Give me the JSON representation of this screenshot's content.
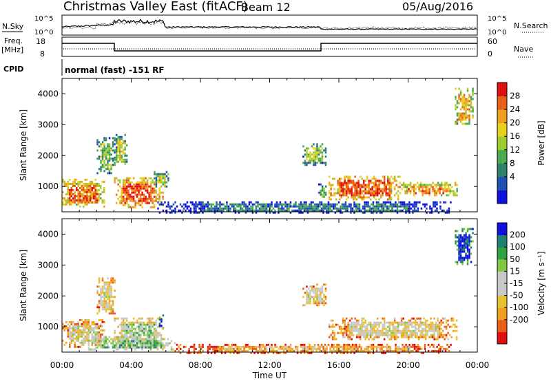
{
  "header": {
    "title": "Christmas Valley East (fitACF)",
    "beam": "Beam 12",
    "date": "05/Aug/2016"
  },
  "top_panels": {
    "nsky": {
      "label": "N.Sky",
      "ticks_left": [
        "10^5",
        "10^0"
      ],
      "ticks_right": [
        "10^5",
        "10^0"
      ],
      "right_label": "N.Search"
    },
    "freq": {
      "label": "Freq.",
      "unit": "[MHz]",
      "ticks_left": [
        "18",
        "8"
      ],
      "ticks_right": [
        "60",
        "0"
      ],
      "right_label": "Nave"
    },
    "cpid": {
      "label": "CPID",
      "text": "normal (fast) -151 RF"
    }
  },
  "chart_data": [
    {
      "type": "heatmap",
      "name": "Power",
      "ylabel": "Slant Range [km]",
      "yticks": [
        1000,
        2000,
        3000,
        4000
      ],
      "ylim": [
        180,
        4500
      ],
      "xlim_hours": [
        0,
        24
      ],
      "colorbar": {
        "label": "Power [dB]",
        "ticks": [
          "28",
          "24",
          "20",
          "16",
          "12",
          "8",
          "4"
        ],
        "colors": [
          "#1010e0",
          "#2050b0",
          "#30806e",
          "#4aaa50",
          "#9ccc30",
          "#e8d020",
          "#f0a020",
          "#e86018",
          "#e01010"
        ]
      },
      "regions": [
        {
          "t0": 0.0,
          "t1": 2.4,
          "r0": 350,
          "r1": 1250,
          "level": 0.8
        },
        {
          "t0": 2.0,
          "t1": 3.0,
          "r0": 1400,
          "r1": 2600,
          "level": 0.45
        },
        {
          "t0": 3.0,
          "t1": 5.8,
          "r0": 350,
          "r1": 1300,
          "level": 0.85
        },
        {
          "t0": 3.0,
          "t1": 3.7,
          "r0": 1700,
          "r1": 2700,
          "level": 0.55
        },
        {
          "t0": 5.3,
          "t1": 6.1,
          "r0": 1000,
          "r1": 1500,
          "level": 0.5
        },
        {
          "t0": 13.9,
          "t1": 15.2,
          "r0": 1700,
          "r1": 2400,
          "level": 0.45
        },
        {
          "t0": 14.8,
          "t1": 15.2,
          "r0": 600,
          "r1": 1100,
          "level": 0.4
        },
        {
          "t0": 15.4,
          "t1": 19.5,
          "r0": 600,
          "r1": 1350,
          "level": 0.85
        },
        {
          "t0": 19.5,
          "t1": 22.8,
          "r0": 700,
          "r1": 1150,
          "level": 0.75
        },
        {
          "t0": 22.7,
          "t1": 23.7,
          "r0": 3000,
          "r1": 4200,
          "level": 0.7
        },
        {
          "t0": 5.5,
          "t1": 22.5,
          "r0": 180,
          "r1": 520,
          "level": 0.25
        }
      ]
    },
    {
      "type": "heatmap",
      "name": "Velocity",
      "ylabel": "Slant Range [km]",
      "yticks": [
        1000,
        2000,
        3000,
        4000
      ],
      "ylim": [
        180,
        4500
      ],
      "xlim_hours": [
        0,
        24
      ],
      "xticks": [
        "00:00",
        "04:00",
        "08:00",
        "12:00",
        "16:00",
        "20:00",
        "00:00"
      ],
      "xlabel": "Time UT",
      "colorbar": {
        "label": "Velocity [m s⁻¹]",
        "ticks": [
          "200",
          "100",
          "50",
          "15",
          "-15",
          "-50",
          "-100",
          "-200"
        ],
        "colors": [
          "#e01010",
          "#e86018",
          "#f0a020",
          "#e8c030",
          "#c8c8c8",
          "#c8c8c8",
          "#80c840",
          "#30a040",
          "#208070",
          "#1010e0"
        ]
      },
      "regions": [
        {
          "t0": 0.0,
          "t1": 2.4,
          "r0": 350,
          "r1": 1250,
          "level": 0.45
        },
        {
          "t0": 2.0,
          "t1": 3.0,
          "r0": 1400,
          "r1": 2600,
          "level": 0.45
        },
        {
          "t0": 3.0,
          "t1": 5.8,
          "r0": 350,
          "r1": 1300,
          "level": 0.6
        },
        {
          "t0": 5.5,
          "t1": 5.8,
          "r0": 950,
          "r1": 1400,
          "level": 0.97
        },
        {
          "t0": 13.9,
          "t1": 15.2,
          "r0": 1700,
          "r1": 2400,
          "level": 0.45
        },
        {
          "t0": 15.4,
          "t1": 22.8,
          "r0": 600,
          "r1": 1300,
          "level": 0.45
        },
        {
          "t0": 22.7,
          "t1": 23.7,
          "r0": 3000,
          "r1": 4200,
          "level": 0.97
        },
        {
          "t0": 1.5,
          "t1": 6.5,
          "r0": 250,
          "r1": 700,
          "level": 0.7
        },
        {
          "t0": 6.5,
          "t1": 22.5,
          "r0": 180,
          "r1": 450,
          "level": 0.3
        }
      ]
    }
  ]
}
